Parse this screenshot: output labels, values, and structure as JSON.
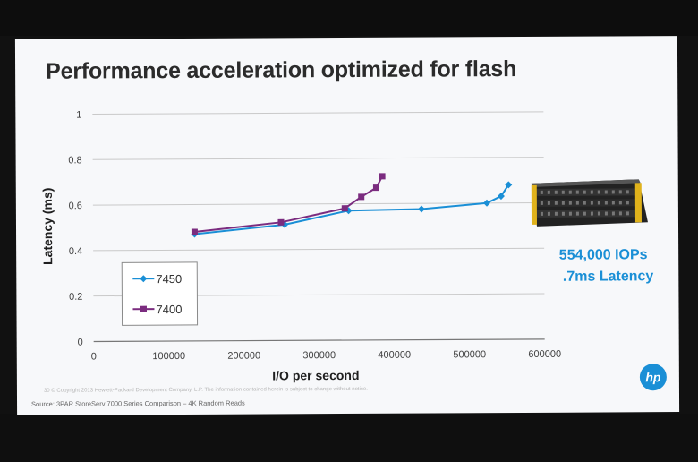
{
  "slide": {
    "title": "Performance acceleration optimized for flash",
    "callout_line1": "554,000 IOPs",
    "callout_line2": ".7ms Latency",
    "logo_text": "hp",
    "fine_print": "30   © Copyright 2013 Hewlett-Packard Development Company, L.P.  The information contained herein is subject to change without notice.",
    "source": "Source:  3PAR StoreServ 7000 Series Comparison – 4K Random Reads"
  },
  "colors": {
    "series_7450": "#1a8fd6",
    "series_7400": "#7b2c7f",
    "accent": "#1a8fd6"
  },
  "chart_data": {
    "type": "line",
    "title": "",
    "xlabel": "I/O per second",
    "ylabel": "Latency (ms)",
    "xlim": [
      0,
      600000
    ],
    "ylim": [
      0,
      1
    ],
    "x_ticks": [
      "0",
      "100000",
      "200000",
      "300000",
      "400000",
      "500000",
      "600000"
    ],
    "y_ticks": [
      "0",
      "0.2",
      "0.4",
      "0.6",
      "0.8",
      "1"
    ],
    "grid": true,
    "legend_position": "bottom-left",
    "series": [
      {
        "name": "7450",
        "color": "#1a8fd6",
        "marker": "diamond",
        "x": [
          135000,
          255000,
          340000,
          437000,
          524000,
          543000,
          553000
        ],
        "y": [
          0.47,
          0.51,
          0.57,
          0.575,
          0.6,
          0.63,
          0.68
        ]
      },
      {
        "name": "7400",
        "color": "#7b2c7f",
        "marker": "square",
        "x": [
          135000,
          250000,
          335000,
          357000,
          377000,
          385000
        ],
        "y": [
          0.48,
          0.52,
          0.58,
          0.63,
          0.67,
          0.72
        ]
      }
    ]
  }
}
